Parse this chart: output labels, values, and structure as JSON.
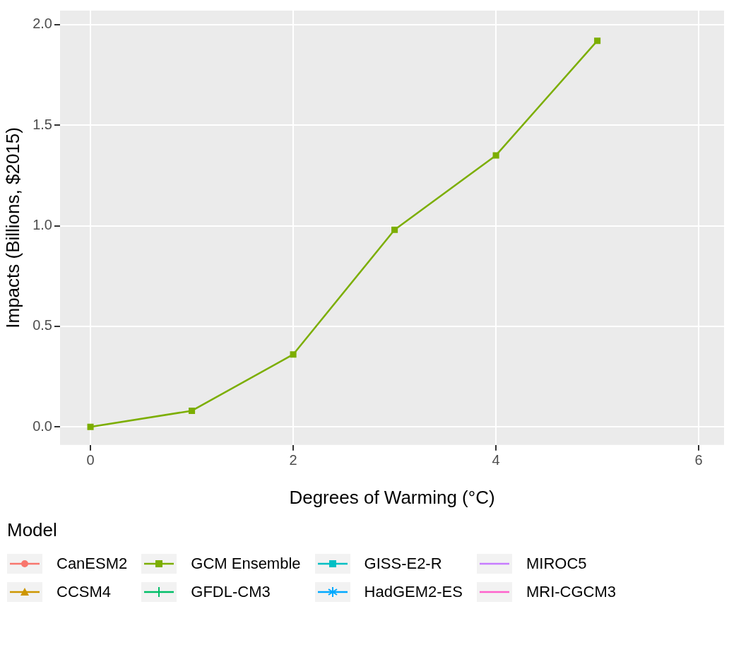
{
  "chart_data": {
    "type": "line",
    "xlabel": "Degrees of Warming (°C)",
    "ylabel": "Impacts (Billions, $2015)",
    "legend_title": "Model",
    "legend": "bottom",
    "grid": true,
    "x": [
      0,
      1,
      2,
      3,
      4,
      5
    ],
    "xlim": [
      -0.3,
      6.25
    ],
    "xticks": [
      0,
      2,
      4,
      6
    ],
    "ylim": [
      -0.09,
      2.07
    ],
    "yticks": [
      {
        "value": 0,
        "label": "0.0"
      },
      {
        "value": 0.5,
        "label": "0.5"
      },
      {
        "value": 1,
        "label": "1.0"
      },
      {
        "value": 1.5,
        "label": "1.5"
      },
      {
        "value": 2,
        "label": "2.0"
      }
    ],
    "series": [
      {
        "name": "CanESM2",
        "color": "#f8766d",
        "marker": "circle",
        "values": [
          null,
          null,
          null,
          null,
          null,
          null
        ]
      },
      {
        "name": "CCSM4",
        "color": "#cd9600",
        "marker": "triangle",
        "values": [
          null,
          null,
          null,
          null,
          null,
          null
        ]
      },
      {
        "name": "GCM Ensemble",
        "color": "#7cae00",
        "marker": "square",
        "values": [
          0,
          0.08,
          0.36,
          0.98,
          1.35,
          1.92
        ]
      },
      {
        "name": "GFDL-CM3",
        "color": "#00be67",
        "marker": "cross",
        "values": [
          null,
          null,
          null,
          null,
          null,
          null
        ]
      },
      {
        "name": "GISS-E2-R",
        "color": "#00bfc4",
        "marker": "square",
        "values": [
          null,
          null,
          null,
          null,
          null,
          null
        ]
      },
      {
        "name": "HadGEM2-ES",
        "color": "#00a9ff",
        "marker": "star",
        "values": [
          null,
          null,
          null,
          null,
          null,
          null
        ]
      },
      {
        "name": "MIROC5",
        "color": "#c77cff",
        "marker": "none",
        "values": [
          null,
          null,
          null,
          null,
          null,
          null
        ]
      },
      {
        "name": "MRI-CGCM3",
        "color": "#ff61cc",
        "marker": "none",
        "values": [
          null,
          null,
          null,
          null,
          null,
          null
        ]
      }
    ]
  }
}
